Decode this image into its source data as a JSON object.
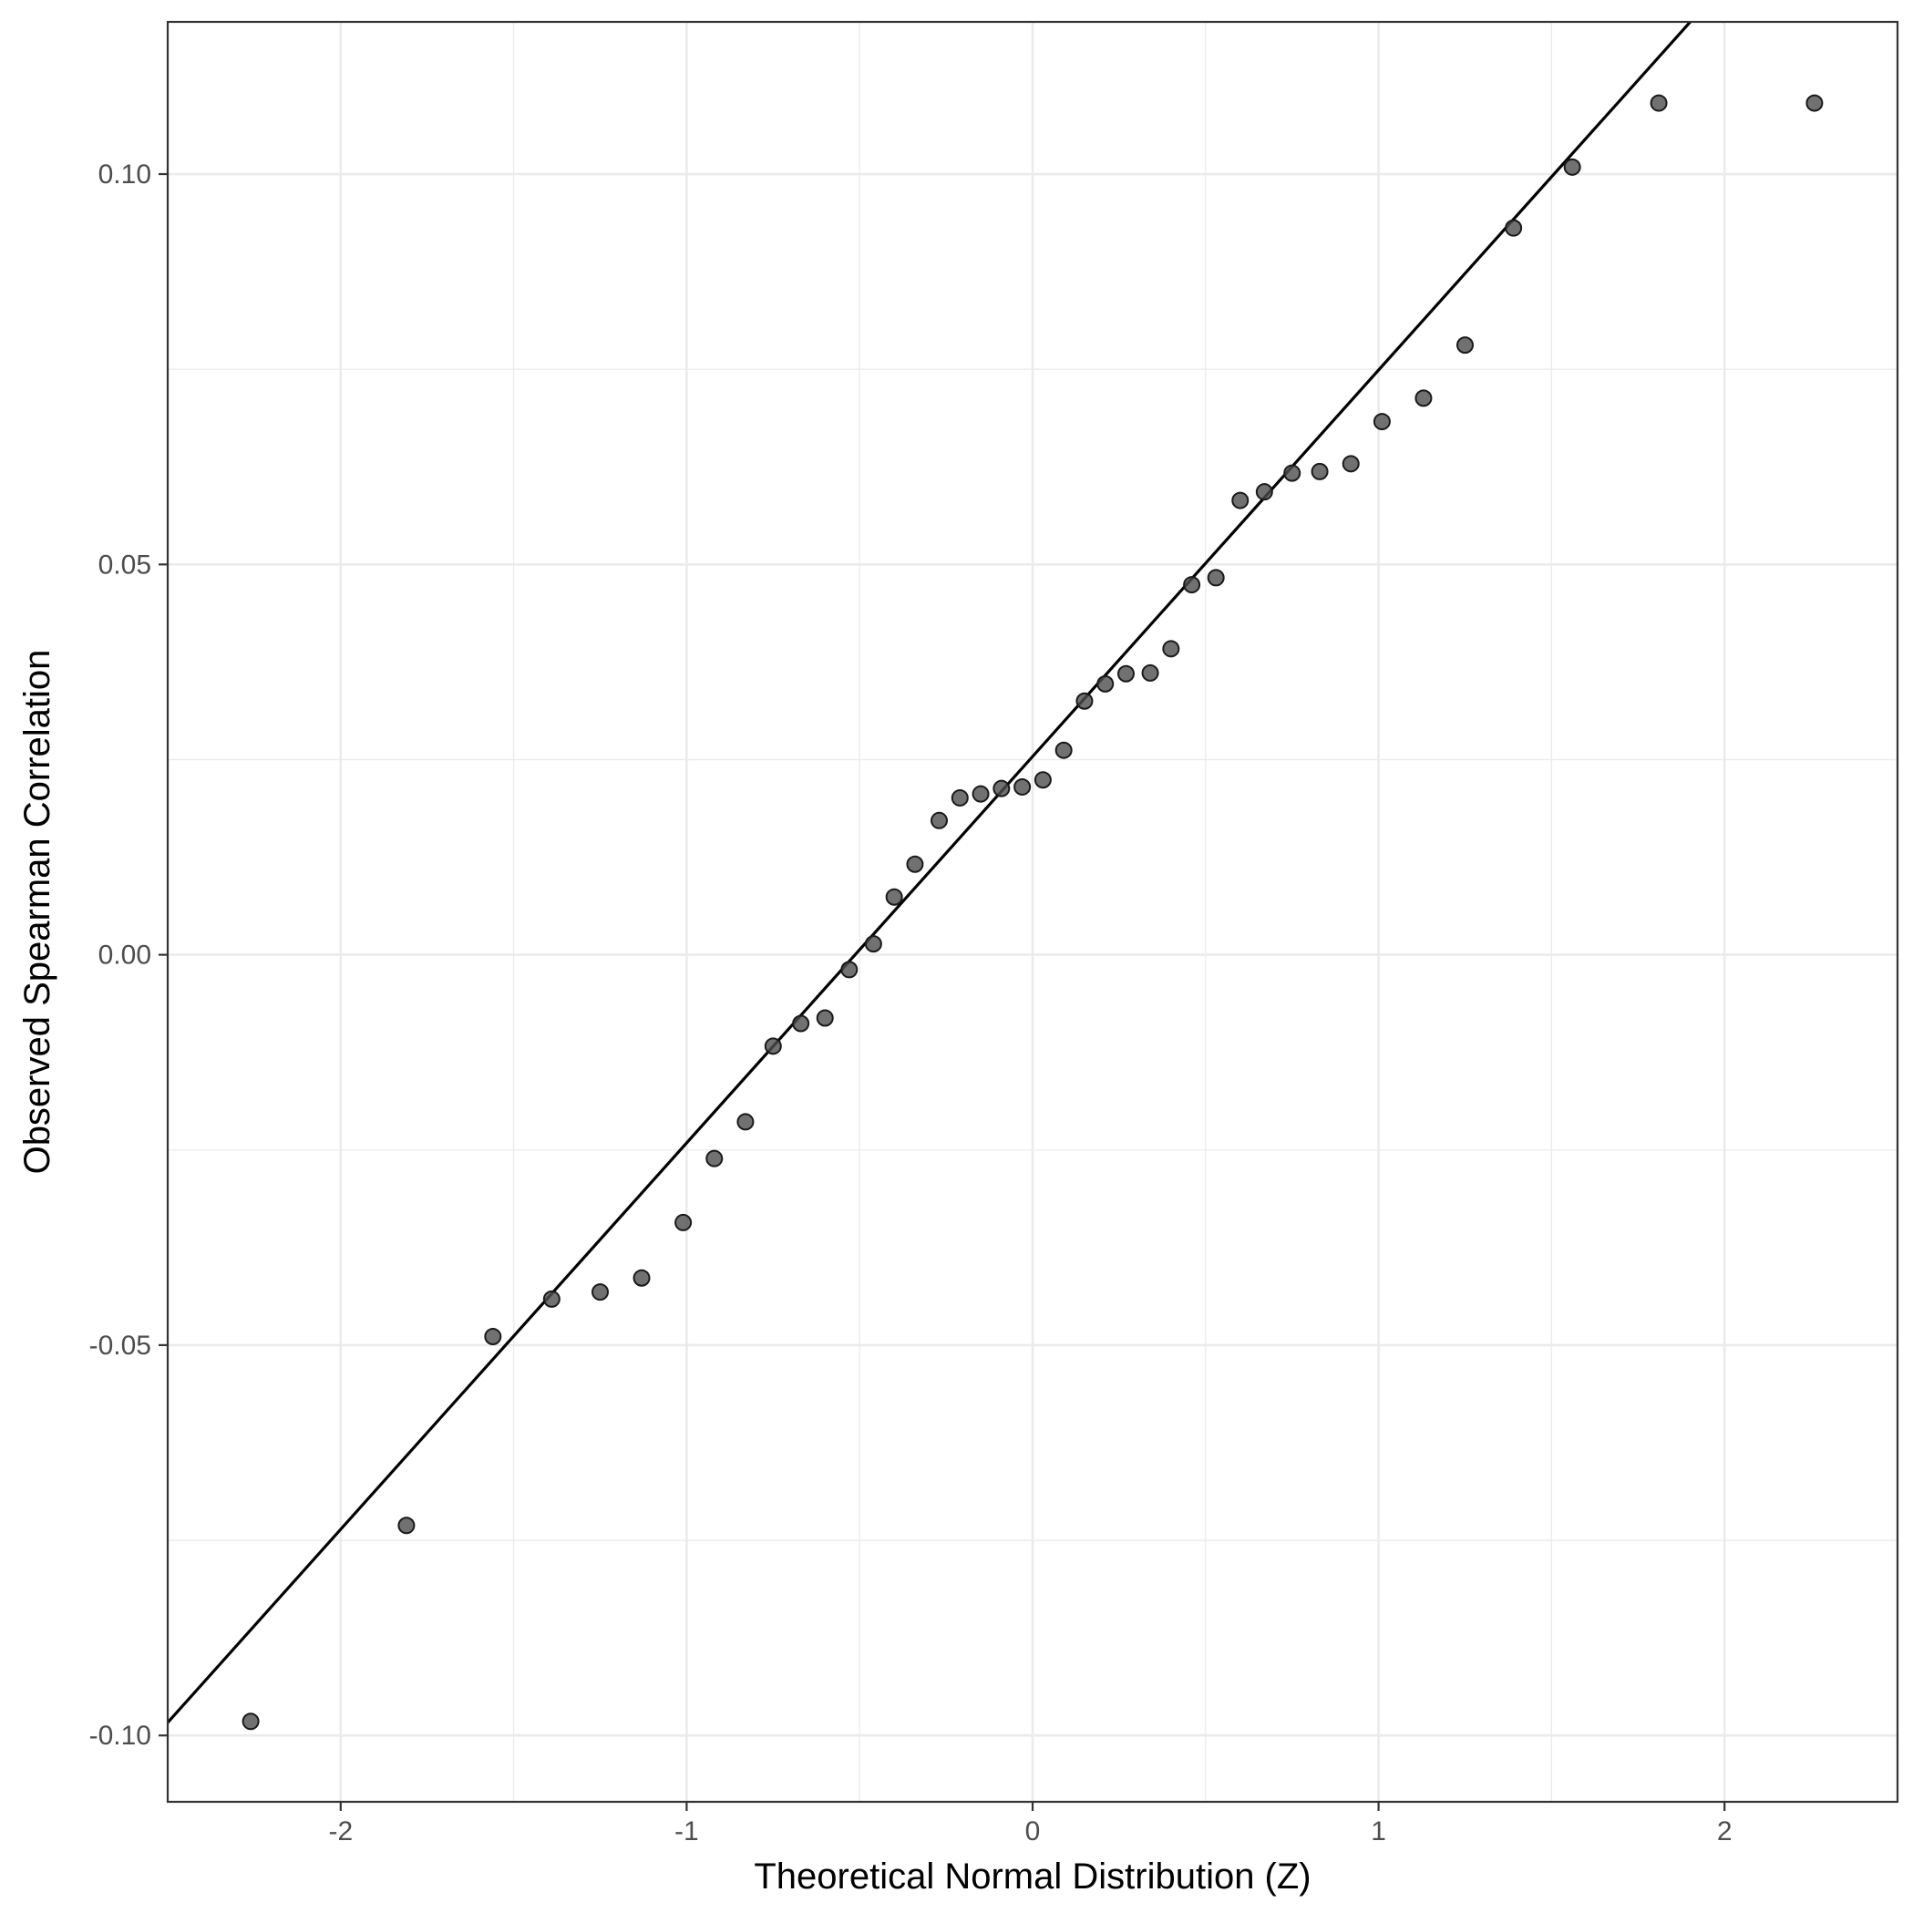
{
  "chart_data": {
    "type": "scatter",
    "xlabel": "Theoretical Normal Distribution (Z)",
    "ylabel": "Observed Spearman Correlation",
    "xlim": [
      -2.5,
      2.5
    ],
    "ylim": [
      -0.1085,
      0.1195
    ],
    "x_ticks": [
      -2,
      -1,
      0,
      1,
      2
    ],
    "x_tick_labels": [
      "-2",
      "-1",
      "0",
      "1",
      "2"
    ],
    "y_ticks": [
      -0.1,
      -0.05,
      0.0,
      0.05,
      0.1
    ],
    "y_tick_labels": [
      "-0.10",
      "-0.05",
      "0.00",
      "0.05",
      "0.10"
    ],
    "grid": true,
    "reference_line": {
      "intercept": 0.0254,
      "slope": 0.0495
    },
    "colors": {
      "point": "#4d4d4d",
      "line": "#000000",
      "grid": "#ebebeb",
      "panel_border": "#333333"
    },
    "points": [
      {
        "x": -2.26,
        "y": -0.0982
      },
      {
        "x": -1.81,
        "y": -0.0731
      },
      {
        "x": -1.56,
        "y": -0.0489
      },
      {
        "x": -1.39,
        "y": -0.0441
      },
      {
        "x": -1.25,
        "y": -0.0432
      },
      {
        "x": -1.13,
        "y": -0.0414
      },
      {
        "x": -1.01,
        "y": -0.0343
      },
      {
        "x": -0.92,
        "y": -0.0261
      },
      {
        "x": -0.83,
        "y": -0.0214
      },
      {
        "x": -0.75,
        "y": -0.0117
      },
      {
        "x": -0.67,
        "y": -0.0088
      },
      {
        "x": -0.6,
        "y": -0.0081
      },
      {
        "x": -0.53,
        "y": -0.0019
      },
      {
        "x": -0.46,
        "y": 0.0014
      },
      {
        "x": -0.4,
        "y": 0.0074
      },
      {
        "x": -0.34,
        "y": 0.0116
      },
      {
        "x": -0.27,
        "y": 0.0172
      },
      {
        "x": -0.21,
        "y": 0.0201
      },
      {
        "x": -0.15,
        "y": 0.0206
      },
      {
        "x": -0.09,
        "y": 0.0213
      },
      {
        "x": -0.03,
        "y": 0.0215
      },
      {
        "x": 0.03,
        "y": 0.0224
      },
      {
        "x": 0.09,
        "y": 0.0262
      },
      {
        "x": 0.15,
        "y": 0.0325
      },
      {
        "x": 0.21,
        "y": 0.0347
      },
      {
        "x": 0.27,
        "y": 0.036
      },
      {
        "x": 0.34,
        "y": 0.0361
      },
      {
        "x": 0.4,
        "y": 0.0392
      },
      {
        "x": 0.46,
        "y": 0.0474
      },
      {
        "x": 0.53,
        "y": 0.0483
      },
      {
        "x": 0.6,
        "y": 0.0582
      },
      {
        "x": 0.67,
        "y": 0.0593
      },
      {
        "x": 0.75,
        "y": 0.0617
      },
      {
        "x": 0.83,
        "y": 0.0619
      },
      {
        "x": 0.92,
        "y": 0.0629
      },
      {
        "x": 1.01,
        "y": 0.0683
      },
      {
        "x": 1.13,
        "y": 0.0713
      },
      {
        "x": 1.25,
        "y": 0.0781
      },
      {
        "x": 1.39,
        "y": 0.0931
      },
      {
        "x": 1.56,
        "y": 0.1009
      },
      {
        "x": 1.81,
        "y": 0.1091
      },
      {
        "x": 2.26,
        "y": 0.1091
      }
    ]
  }
}
